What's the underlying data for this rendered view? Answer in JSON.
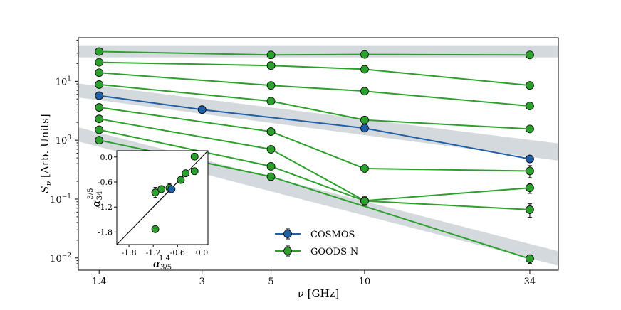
{
  "chart_data": {
    "type": "line",
    "xscale": "log",
    "yscale": "log",
    "xlabel": "ν [GHz]",
    "ylabel_main": "S",
    "ylabel_sub": "ν",
    "ylabel_rest": " [Arb. Units]",
    "x_ticks": [
      1.4,
      3,
      5,
      10,
      34
    ],
    "x_tick_labels": [
      "1.4",
      "3",
      "5",
      "10",
      "34"
    ],
    "y_ticks": [
      0.01,
      0.1,
      1,
      10
    ],
    "y_tick_labels": [
      {
        "base": "10",
        "exp": "−2"
      },
      {
        "base": "10",
        "exp": "−1"
      },
      {
        "base": "10",
        "exp": "0"
      },
      {
        "base": "10",
        "exp": "1"
      }
    ],
    "xlim": [
      1.2,
      42
    ],
    "ylim": [
      0.0062,
      55
    ],
    "colors": {
      "cosmos": "#1f5fa8",
      "goods": "#2ca02c",
      "band": "#d4d9de"
    },
    "bands": [
      {
        "x": [
          1.2,
          42
        ],
        "lower": [
          25.5,
          25.5
        ],
        "upper": [
          41,
          41
        ]
      },
      {
        "x": [
          1.2,
          42
        ],
        "lower": [
          5.3,
          0.45
        ],
        "upper": [
          9.2,
          0.88
        ]
      },
      {
        "x": [
          1.2,
          42
        ],
        "lower": [
          0.95,
          0.0074
        ],
        "upper": [
          1.65,
          0.013
        ]
      }
    ],
    "series": [
      {
        "name": "GOODS-N",
        "group": "goods",
        "x": [
          1.4,
          5,
          10,
          34
        ],
        "y": [
          32,
          28,
          28.5,
          28
        ],
        "err": [
          0,
          0,
          0,
          0
        ]
      },
      {
        "name": "GOODS-N",
        "group": "goods",
        "x": [
          1.4,
          5,
          10,
          34
        ],
        "y": [
          21,
          18.5,
          16,
          8.5
        ],
        "err": [
          0,
          0,
          0,
          0
        ]
      },
      {
        "name": "GOODS-N",
        "group": "goods",
        "x": [
          1.4,
          5,
          10,
          34
        ],
        "y": [
          14,
          8.5,
          6.8,
          3.8
        ],
        "err": [
          0,
          0,
          0,
          0
        ]
      },
      {
        "name": "GOODS-N",
        "group": "goods",
        "x": [
          1.4,
          5,
          10,
          34
        ],
        "y": [
          8.8,
          4.6,
          2.2,
          1.55
        ],
        "err": [
          0,
          0,
          0,
          0
        ]
      },
      {
        "name": "COSMOS",
        "group": "cosmos",
        "x": [
          1.4,
          3,
          10,
          34
        ],
        "y": [
          5.7,
          3.3,
          1.6,
          0.48
        ],
        "err": [
          0,
          0,
          0,
          0.06
        ]
      },
      {
        "name": "GOODS-N",
        "group": "goods",
        "x": [
          1.4,
          5,
          10,
          34
        ],
        "y": [
          3.6,
          1.4,
          0.33,
          0.3
        ],
        "err": [
          0,
          0,
          0,
          0.07
        ]
      },
      {
        "name": "GOODS-N",
        "group": "goods",
        "x": [
          1.4,
          5,
          10,
          34
        ],
        "y": [
          2.3,
          0.7,
          0.094,
          0.155
        ],
        "err": [
          0,
          0,
          0.015,
          0.03
        ]
      },
      {
        "name": "GOODS-N",
        "group": "goods",
        "x": [
          1.4,
          5,
          10,
          34
        ],
        "y": [
          1.5,
          0.36,
          0.093,
          0.066
        ],
        "err": [
          0,
          0,
          0.015,
          0.017
        ]
      },
      {
        "name": "GOODS-N",
        "group": "goods",
        "x": [
          1.4,
          5,
          34
        ],
        "y": [
          1.0,
          0.24,
          0.0097
        ],
        "err": [
          0,
          0,
          0.0016
        ]
      }
    ],
    "legend": {
      "position": "bottom-center",
      "entries": [
        {
          "label": "COSMOS",
          "group": "cosmos"
        },
        {
          "label": "GOODS-N",
          "group": "goods"
        }
      ]
    },
    "inset": {
      "xlim": [
        -2.1,
        0.15
      ],
      "ylim": [
        -2.1,
        0.15
      ],
      "ticks": [
        -1.8,
        -1.2,
        -0.6,
        0.0
      ],
      "tick_labels": [
        "-1.8",
        "-1.2",
        "-0.6",
        "0.0"
      ],
      "xlabel": {
        "main": "α",
        "sub": "3/5",
        "sup": "1.4"
      },
      "ylabel": {
        "main": "α",
        "sub": "34",
        "sup": "3/5"
      },
      "points": [
        {
          "x": -1.15,
          "y": -1.73,
          "xerr": 0,
          "yerr": 0,
          "group": "goods"
        },
        {
          "x": -1.15,
          "y": -0.85,
          "xerr": 0.07,
          "yerr": 0.12,
          "group": "goods"
        },
        {
          "x": -1.0,
          "y": -0.77,
          "xerr": 0,
          "yerr": 0.08,
          "group": "goods"
        },
        {
          "x": -0.8,
          "y": -0.74,
          "xerr": 0,
          "yerr": 0.1,
          "group": "goods"
        },
        {
          "x": -0.75,
          "y": -0.77,
          "xerr": 0,
          "yerr": 0,
          "group": "cosmos"
        },
        {
          "x": -0.52,
          "y": -0.55,
          "xerr": 0,
          "yerr": 0,
          "group": "goods"
        },
        {
          "x": -0.4,
          "y": -0.39,
          "xerr": 0,
          "yerr": 0,
          "group": "goods"
        },
        {
          "x": -0.18,
          "y": -0.34,
          "xerr": 0,
          "yerr": 0,
          "group": "goods"
        },
        {
          "x": -0.18,
          "y": 0.01,
          "xerr": 0,
          "yerr": 0,
          "group": "goods"
        }
      ]
    }
  }
}
